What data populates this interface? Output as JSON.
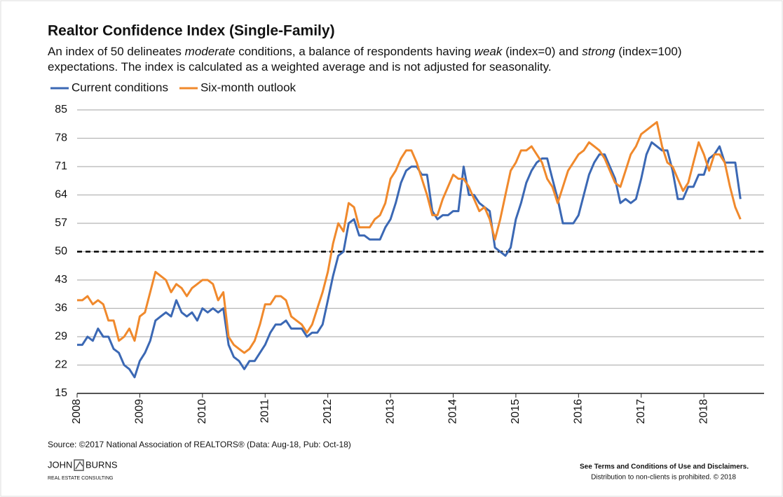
{
  "chart_data": {
    "type": "line",
    "title": "Realtor Confidence Index (Single-Family)",
    "subtitle": [
      [
        {
          "text": "An index of 50 delineates ",
          "italic": false
        },
        {
          "text": "moderate",
          "italic": true
        },
        {
          "text": " conditions, a balance of respondents having ",
          "italic": false
        },
        {
          "text": "weak",
          "italic": true
        },
        {
          "text": " (index=0) and ",
          "italic": false
        },
        {
          "text": "strong",
          "italic": true
        },
        {
          "text": " (index=100)",
          "italic": false
        }
      ],
      [
        {
          "text": "expectations. The index is calculated as a weighted average and is not adjusted for seasonality.",
          "italic": false
        }
      ]
    ],
    "x": [
      2008,
      2008.083,
      2008.167,
      2008.25,
      2008.333,
      2008.417,
      2008.5,
      2008.583,
      2008.667,
      2008.75,
      2008.833,
      2008.917,
      2009,
      2009.083,
      2009.167,
      2009.25,
      2009.333,
      2009.417,
      2009.5,
      2009.583,
      2009.667,
      2009.75,
      2009.833,
      2009.917,
      2010,
      2010.083,
      2010.167,
      2010.25,
      2010.333,
      2010.417,
      2010.5,
      2010.583,
      2010.667,
      2010.75,
      2010.833,
      2010.917,
      2011,
      2011.083,
      2011.167,
      2011.25,
      2011.333,
      2011.417,
      2011.5,
      2011.583,
      2011.667,
      2011.75,
      2011.833,
      2011.917,
      2012,
      2012.083,
      2012.167,
      2012.25,
      2012.333,
      2012.417,
      2012.5,
      2012.583,
      2012.667,
      2012.75,
      2012.833,
      2012.917,
      2013,
      2013.083,
      2013.167,
      2013.25,
      2013.333,
      2013.417,
      2013.5,
      2013.583,
      2013.667,
      2013.75,
      2013.833,
      2013.917,
      2014,
      2014.083,
      2014.167,
      2014.25,
      2014.333,
      2014.417,
      2014.5,
      2014.583,
      2014.667,
      2014.75,
      2014.833,
      2014.917,
      2015,
      2015.083,
      2015.167,
      2015.25,
      2015.333,
      2015.417,
      2015.5,
      2015.583,
      2015.667,
      2015.75,
      2015.833,
      2015.917,
      2016,
      2016.083,
      2016.167,
      2016.25,
      2016.333,
      2016.417,
      2016.5,
      2016.583,
      2016.667,
      2016.75,
      2016.833,
      2016.917,
      2017,
      2017.083,
      2017.167,
      2017.25,
      2017.333,
      2017.417,
      2017.5,
      2017.583,
      2017.667,
      2017.75,
      2017.833,
      2017.917,
      2018,
      2018.083,
      2018.167,
      2018.25,
      2018.333,
      2018.417,
      2018.5,
      2018.583
    ],
    "series": [
      {
        "name": "Current conditions",
        "color": "#3b68b4",
        "values": [
          27,
          27,
          29,
          28,
          31,
          29,
          29,
          26,
          25,
          22,
          21,
          19,
          23,
          25,
          28,
          33,
          34,
          35,
          34,
          38,
          35,
          34,
          35,
          33,
          36,
          35,
          36,
          35,
          36,
          27,
          24,
          23,
          21,
          23,
          23,
          25,
          27,
          30,
          32,
          32,
          33,
          31,
          31,
          31,
          29,
          30,
          30,
          32,
          38,
          44,
          49,
          50,
          57,
          58,
          54,
          54,
          53,
          53,
          53,
          56,
          58,
          62,
          67,
          70,
          71,
          71,
          69,
          69,
          60,
          58,
          59,
          59,
          60,
          60,
          71,
          64,
          64,
          62,
          61,
          60,
          51,
          50,
          49,
          51,
          58,
          62,
          67,
          70,
          72,
          73,
          73,
          68,
          63,
          57,
          57,
          57,
          59,
          64,
          69,
          72,
          74,
          74,
          71,
          68,
          62,
          63,
          62,
          63,
          68,
          74,
          77,
          76,
          75,
          75,
          70,
          63,
          63,
          66,
          66,
          69,
          69,
          73,
          74,
          76,
          72,
          72,
          72,
          63
        ]
      },
      {
        "name": "Six-month outlook",
        "color": "#f0892c",
        "values": [
          38,
          38,
          39,
          37,
          38,
          37,
          33,
          33,
          28,
          29,
          31,
          28,
          34,
          35,
          40,
          45,
          44,
          43,
          40,
          42,
          41,
          39,
          41,
          42,
          43,
          43,
          42,
          38,
          40,
          29,
          27,
          26,
          25,
          26,
          28,
          32,
          37,
          37,
          39,
          39,
          38,
          34,
          33,
          32,
          30,
          32,
          36,
          40,
          45,
          52,
          57,
          55,
          62,
          61,
          56,
          56,
          56,
          58,
          59,
          62,
          68,
          70,
          73,
          75,
          75,
          72,
          68,
          64,
          59,
          59,
          63,
          66,
          69,
          68,
          68,
          66,
          63,
          60,
          61,
          58,
          53,
          58,
          64,
          70,
          72,
          75,
          75,
          76,
          74,
          72,
          68,
          66,
          62,
          66,
          70,
          72,
          74,
          75,
          77,
          76,
          75,
          73,
          70,
          67,
          66,
          70,
          74,
          76,
          79,
          80,
          81,
          82,
          76,
          72,
          71,
          68,
          65,
          67,
          72,
          77,
          74,
          70,
          74,
          74,
          72,
          66,
          61,
          58
        ]
      }
    ],
    "xlim": [
      2008,
      2018.96
    ],
    "xticks": [
      2008,
      2009,
      2010,
      2011,
      2012,
      2013,
      2014,
      2015,
      2016,
      2017,
      2018
    ],
    "ylim": [
      15,
      85
    ],
    "yticks": [
      15,
      22,
      29,
      36,
      43,
      50,
      57,
      64,
      71,
      78,
      85
    ],
    "reference_line": 50,
    "grid": true,
    "legend": "top-left",
    "source": "Source:  ©2017 National Association of REALTORS® (Data: Aug-18, Pub: Oct-18)",
    "logo": {
      "name_left": "JOHN",
      "name_right": "BURNS",
      "tagline": "REAL ESTATE CONSULTING"
    },
    "disclaimer": [
      "See Terms and Conditions of Use and Disclaimers.",
      "Distribution to non-clients is prohibited. © 2018"
    ]
  }
}
